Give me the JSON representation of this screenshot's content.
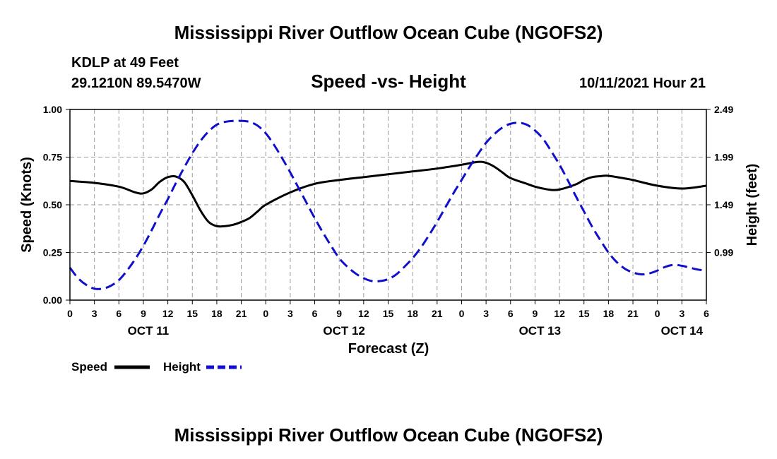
{
  "page": {
    "title_top": "Mississippi River Outflow Ocean Cube (NGOFS2)",
    "title_bottom": "Mississippi River Outflow Ocean Cube (NGOFS2)",
    "station": "KDLP at 49 Feet",
    "coords": "29.1210N  89.5470W",
    "plot_title": "Speed -vs- Height",
    "datetime": "10/11/2021 Hour 21"
  },
  "legend": {
    "speed_label": "Speed",
    "height_label": "Height"
  },
  "colors": {
    "speed": "#000000",
    "height": "#1010cc",
    "grid": "#999999"
  },
  "chart_data": {
    "type": "line",
    "title": "Speed -vs- Height",
    "xlabel": "Forecast (Z)",
    "ylabel": "Speed (Knots)",
    "y2label": "Height (feet)",
    "x_unit": "hours from Oct 11 00Z",
    "xlim": [
      0,
      78
    ],
    "ylim": [
      0,
      1
    ],
    "y2lim": [
      0.49,
      2.49
    ],
    "x_ticks": [
      0,
      3,
      6,
      9,
      12,
      15,
      18,
      21,
      24,
      27,
      30,
      33,
      36,
      39,
      42,
      45,
      48,
      51,
      54,
      57,
      60,
      63,
      66,
      69,
      72,
      75,
      78
    ],
    "x_tick_labels": [
      "0",
      "3",
      "6",
      "9",
      "12",
      "15",
      "18",
      "21",
      "0",
      "3",
      "6",
      "9",
      "12",
      "15",
      "18",
      "21",
      "0",
      "3",
      "6",
      "9",
      "12",
      "15",
      "18",
      "21",
      "0",
      "3",
      "6"
    ],
    "y_ticks": [
      0,
      0.25,
      0.5,
      0.75,
      1.0
    ],
    "y_tick_labels": [
      "0.00",
      "0.25",
      "0.50",
      "0.75",
      "1.00"
    ],
    "y2_ticks": [
      0.99,
      1.49,
      1.99,
      2.49
    ],
    "y2_tick_labels": [
      "0.99",
      "1.49",
      "1.99",
      "2.49"
    ],
    "date_labels": [
      {
        "x": 9.6,
        "label": "OCT 11"
      },
      {
        "x": 33.6,
        "label": "OCT 12"
      },
      {
        "x": 57.6,
        "label": "OCT 13"
      },
      {
        "x": 75.0,
        "label": "OCT 14"
      }
    ],
    "series": [
      {
        "name": "Speed",
        "axis": "left",
        "style": "solid",
        "x": [
          0,
          3,
          6,
          8,
          9,
          10,
          11,
          12,
          13,
          14,
          15,
          16,
          17,
          18,
          19,
          20,
          21,
          22,
          23,
          24,
          27,
          30,
          33,
          36,
          39,
          42,
          45,
          48,
          50,
          51,
          52,
          53,
          54,
          56,
          57,
          58,
          59,
          60,
          62,
          63,
          64,
          65,
          66,
          68,
          69,
          72,
          75,
          78
        ],
        "values": [
          0.625,
          0.615,
          0.595,
          0.565,
          0.56,
          0.58,
          0.62,
          0.645,
          0.648,
          0.62,
          0.55,
          0.47,
          0.41,
          0.388,
          0.388,
          0.395,
          0.41,
          0.43,
          0.465,
          0.5,
          0.565,
          0.61,
          0.63,
          0.645,
          0.66,
          0.675,
          0.69,
          0.71,
          0.725,
          0.72,
          0.7,
          0.67,
          0.64,
          0.61,
          0.595,
          0.585,
          0.578,
          0.58,
          0.607,
          0.63,
          0.645,
          0.65,
          0.652,
          0.638,
          0.63,
          0.6,
          0.585,
          0.6
        ]
      },
      {
        "name": "Height",
        "axis": "right",
        "style": "dashed",
        "x": [
          0,
          1,
          2,
          3,
          4,
          5,
          6,
          7,
          8,
          9,
          10,
          11,
          12,
          13,
          14,
          15,
          16,
          17,
          18,
          19,
          20,
          21,
          22,
          23,
          24,
          25,
          26,
          27,
          28,
          29,
          30,
          31,
          32,
          33,
          34,
          35,
          36,
          37,
          38,
          39,
          40,
          41,
          42,
          43,
          44,
          45,
          46,
          47,
          48,
          49,
          50,
          51,
          52,
          53,
          54,
          55,
          56,
          57,
          58,
          59,
          60,
          61,
          62,
          63,
          64,
          65,
          66,
          67,
          68,
          69,
          70,
          71,
          72,
          73,
          74,
          75,
          76,
          77,
          78
        ],
        "values": [
          0.83,
          0.72,
          0.65,
          0.61,
          0.61,
          0.64,
          0.7,
          0.8,
          0.92,
          1.06,
          1.22,
          1.39,
          1.55,
          1.72,
          1.88,
          2.03,
          2.16,
          2.26,
          2.33,
          2.36,
          2.37,
          2.37,
          2.36,
          2.32,
          2.24,
          2.12,
          1.98,
          1.83,
          1.67,
          1.51,
          1.35,
          1.2,
          1.06,
          0.93,
          0.84,
          0.77,
          0.72,
          0.69,
          0.69,
          0.71,
          0.76,
          0.84,
          0.93,
          1.04,
          1.17,
          1.31,
          1.46,
          1.61,
          1.75,
          1.89,
          2.02,
          2.14,
          2.23,
          2.3,
          2.34,
          2.35,
          2.33,
          2.27,
          2.18,
          2.05,
          1.91,
          1.75,
          1.58,
          1.42,
          1.26,
          1.12,
          0.99,
          0.89,
          0.82,
          0.78,
          0.76,
          0.77,
          0.8,
          0.84,
          0.86,
          0.85,
          0.83,
          0.81,
          0.8
        ]
      }
    ]
  }
}
